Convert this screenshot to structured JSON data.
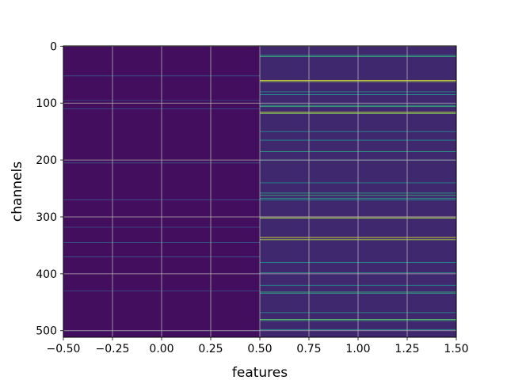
{
  "chart_data": {
    "type": "heatmap",
    "title": "",
    "xlabel": "features",
    "ylabel": "channels",
    "colormap": "viridis",
    "grid": true,
    "columns": [
      0,
      1
    ],
    "rows": 512,
    "xlim": [
      -0.5,
      1.5
    ],
    "ylim": [
      511.5,
      -0.5
    ],
    "x_ticks": [
      -0.5,
      -0.25,
      0.0,
      0.25,
      0.5,
      0.75,
      1.0,
      1.25,
      1.5
    ],
    "x_tick_labels": [
      "−0.50",
      "−0.25",
      "0.00",
      "0.25",
      "0.50",
      "0.75",
      "1.00",
      "1.25",
      "1.50"
    ],
    "y_ticks": [
      0,
      100,
      200,
      300,
      400,
      500
    ],
    "y_tick_labels": [
      "0",
      "100",
      "200",
      "300",
      "400",
      "500"
    ],
    "value_range": [
      0,
      1
    ],
    "column_0": {
      "base_value": 0.04,
      "notable_rows": [
        [
          52,
          0.25
        ],
        [
          95,
          0.2
        ],
        [
          110,
          0.22
        ],
        [
          205,
          0.28
        ],
        [
          270,
          0.25
        ],
        [
          318,
          0.22
        ],
        [
          345,
          0.3
        ],
        [
          370,
          0.28
        ],
        [
          430,
          0.22
        ],
        [
          500,
          0.2
        ]
      ]
    },
    "column_1": {
      "base_value": 0.12,
      "notable_rows": [
        [
          16,
          0.55
        ],
        [
          18,
          0.6
        ],
        [
          60,
          0.95
        ],
        [
          62,
          0.85
        ],
        [
          80,
          0.45
        ],
        [
          85,
          0.5
        ],
        [
          104,
          0.55
        ],
        [
          106,
          0.6
        ],
        [
          116,
          0.9
        ],
        [
          118,
          0.8
        ],
        [
          150,
          0.45
        ],
        [
          165,
          0.5
        ],
        [
          185,
          0.55
        ],
        [
          200,
          0.5
        ],
        [
          240,
          0.45
        ],
        [
          258,
          0.55
        ],
        [
          262,
          0.6
        ],
        [
          267,
          0.55
        ],
        [
          270,
          0.5
        ],
        [
          300,
          0.95
        ],
        [
          302,
          0.85
        ],
        [
          336,
          0.95
        ],
        [
          340,
          0.85
        ],
        [
          380,
          0.5
        ],
        [
          398,
          0.45
        ],
        [
          420,
          0.5
        ],
        [
          432,
          0.6
        ],
        [
          434,
          0.55
        ],
        [
          468,
          0.45
        ],
        [
          480,
          0.7
        ],
        [
          482,
          0.6
        ],
        [
          498,
          0.5
        ]
      ]
    }
  }
}
